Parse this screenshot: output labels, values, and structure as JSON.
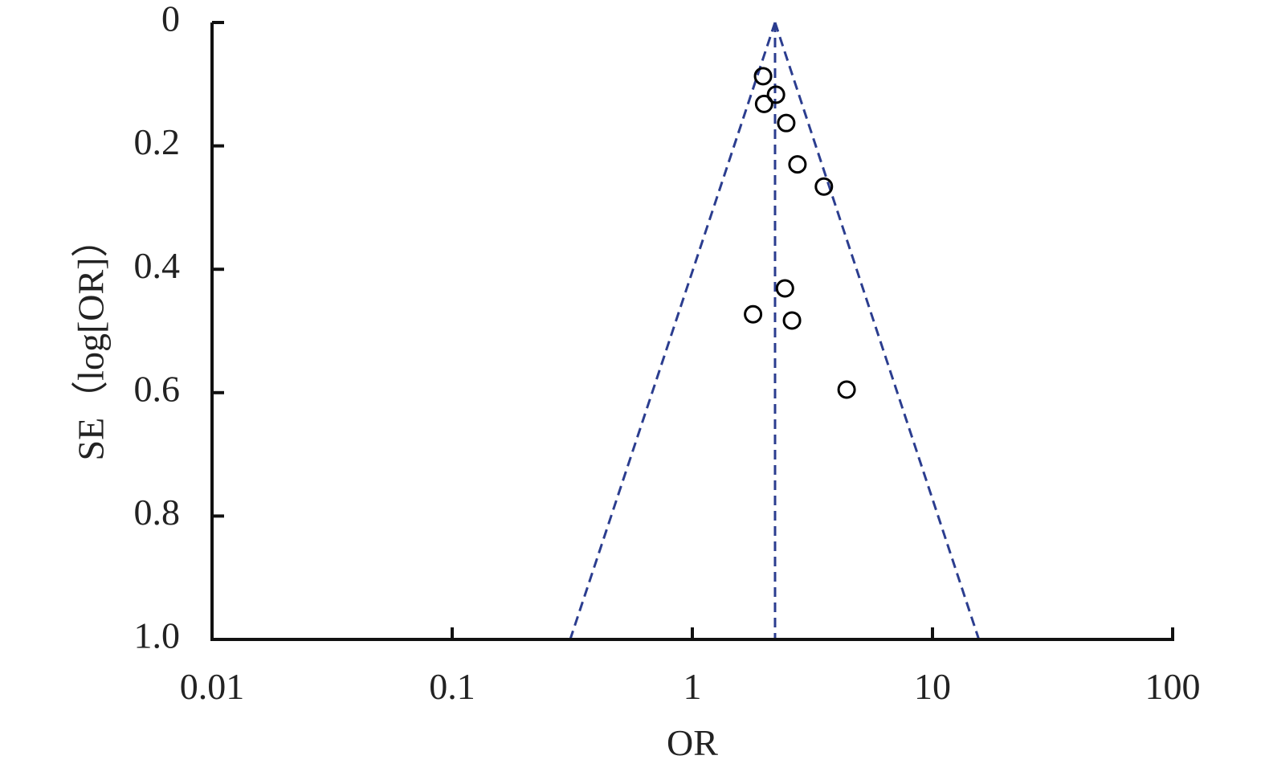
{
  "chart_data": {
    "type": "scatter",
    "x_label": "OR",
    "y_label": "SE（log[OR]）",
    "x": [
      1.97,
      2.23,
      1.99,
      2.46,
      2.74,
      3.53,
      2.43,
      1.79,
      2.6,
      4.39
    ],
    "values": [
      0.087,
      0.117,
      0.132,
      0.163,
      0.23,
      0.266,
      0.431,
      0.473,
      0.483,
      0.595
    ],
    "color": "#000000",
    "x_log": true,
    "y_inverted": true,
    "xlim": [
      0.01,
      100
    ],
    "xticks": [
      0.01,
      0.1,
      1,
      10,
      100
    ],
    "ylim": [
      0,
      1
    ],
    "yticks": [
      0,
      0.2,
      0.4,
      0.6,
      0.8,
      {
        "value": 1,
        "label": "1.0"
      }
    ],
    "reference_color": "#2b3d8f",
    "reference_lines": [
      {
        "x": [
          2.21,
          2.21
        ],
        "y": [
          0,
          1
        ]
      },
      {
        "x": [
          2.21,
          0.31
        ],
        "y": [
          0,
          1
        ]
      },
      {
        "x": [
          2.21,
          15.6
        ],
        "y": [
          0,
          1
        ]
      }
    ]
  }
}
